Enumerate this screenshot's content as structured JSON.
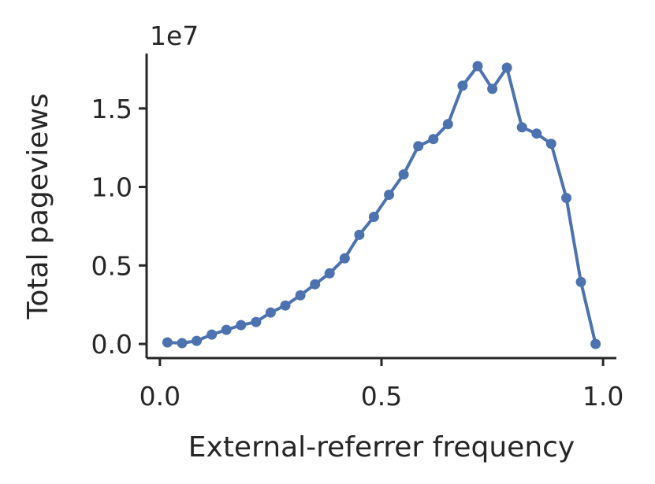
{
  "chart_data": {
    "type": "line",
    "xlabel": "External-referrer frequency",
    "ylabel": "Total pageviews",
    "y_offset_label": "1e7",
    "xlim": [
      -0.03,
      1.03
    ],
    "ylim": [
      -0.09,
      1.85
    ],
    "y_scale": 10000000,
    "x_ticks": [
      0.0,
      0.5,
      1.0
    ],
    "x_tick_labels": [
      "0.0",
      "0.5",
      "1.0"
    ],
    "y_ticks": [
      0.0,
      0.5,
      1.0,
      1.5
    ],
    "y_tick_labels": [
      "0.0",
      "0.5",
      "1.0",
      "1.5"
    ],
    "grid": false,
    "color": "#4c72b0",
    "series": [
      {
        "x": [
          0.017,
          0.05,
          0.083,
          0.117,
          0.15,
          0.183,
          0.217,
          0.25,
          0.283,
          0.317,
          0.35,
          0.383,
          0.417,
          0.45,
          0.483,
          0.517,
          0.55,
          0.583,
          0.617,
          0.65,
          0.683,
          0.717,
          0.75,
          0.783,
          0.817,
          0.85,
          0.883,
          0.917,
          0.95,
          0.983
        ],
        "y": [
          0.01,
          0.005,
          0.02,
          0.06,
          0.09,
          0.12,
          0.14,
          0.2,
          0.245,
          0.31,
          0.38,
          0.45,
          0.545,
          0.695,
          0.81,
          0.95,
          1.08,
          1.26,
          1.305,
          1.4,
          1.645,
          1.77,
          1.625,
          1.76,
          1.38,
          1.34,
          1.275,
          0.93,
          0.395,
          0.0
        ]
      }
    ]
  }
}
